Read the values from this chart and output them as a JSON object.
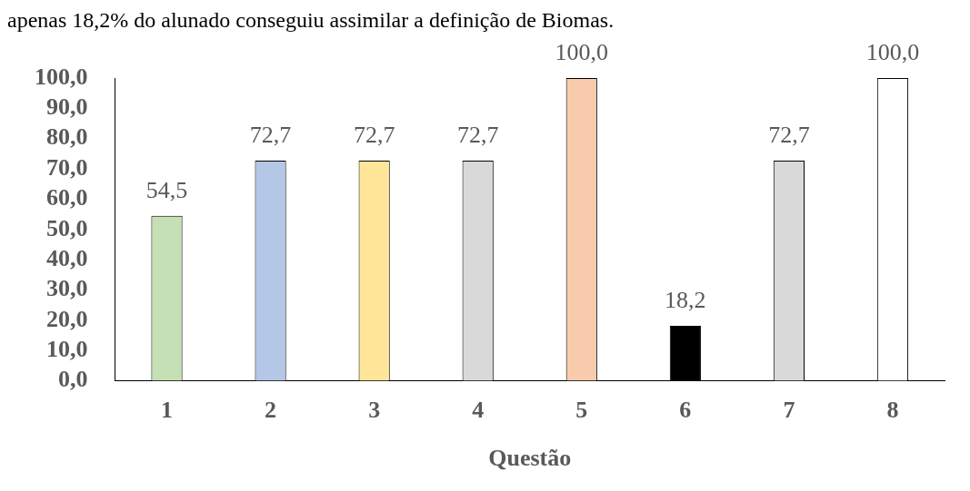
{
  "chart_data": {
    "type": "bar",
    "xlabel": "Questão",
    "annotations": [
      "apenas 18,2% do alunado conseguiu assimilar a definição de Biomas."
    ],
    "categories": [
      "1",
      "2",
      "3",
      "4",
      "5",
      "6",
      "7",
      "8"
    ],
    "values": [
      54.5,
      72.7,
      72.7,
      72.7,
      100,
      18.2,
      72.7,
      100
    ],
    "colors": [
      "#c5e0b4",
      "#b4c7e7",
      "#ffe699",
      "#d9d9d9",
      "#f8cbad",
      "#000000",
      "#d9d9d9",
      "#ffffff"
    ],
    "value_labels": [
      "54,5",
      "72,7",
      "72,7",
      "72,7",
      "100,0",
      "18,2",
      "72,7",
      "100,0"
    ],
    "ylim": [
      0,
      100
    ],
    "yticks": [
      {
        "value": 0,
        "label": "0,0"
      },
      {
        "value": 10,
        "label": "10,0"
      },
      {
        "value": 20,
        "label": "20,0"
      },
      {
        "value": 30,
        "label": "30,0"
      },
      {
        "value": 40,
        "label": "40,0"
      },
      {
        "value": 50,
        "label": "50,0"
      },
      {
        "value": 60,
        "label": "60,0"
      },
      {
        "value": 70,
        "label": "70,0"
      },
      {
        "value": 80,
        "label": "80,0"
      },
      {
        "value": 90,
        "label": "90,0"
      },
      {
        "value": 100,
        "label": "100,0"
      }
    ],
    "grid": false,
    "legend": false
  }
}
